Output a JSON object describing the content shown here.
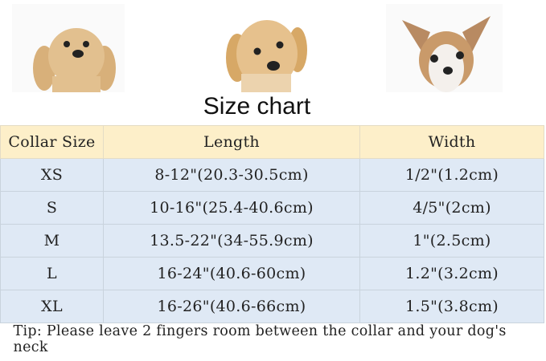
{
  "dogs": [
    {
      "icon": "cocker-spaniel-puppy-photo"
    },
    {
      "icon": "golden-retriever-puppy-photo"
    },
    {
      "icon": "chihuahua-photo"
    }
  ],
  "title": "Size chart",
  "headers": [
    "Collar Size",
    "Length",
    "Width"
  ],
  "rows": [
    [
      "XS",
      "8-12\"(20.3-30.5cm)",
      "1/2\"(1.2cm)"
    ],
    [
      "S",
      "10-16\"(25.4-40.6cm)",
      "4/5\"(2cm)"
    ],
    [
      "M",
      "13.5-22\"(34-55.9cm)",
      "1\"(2.5cm)"
    ],
    [
      "L",
      "16-24\"(40.6-60cm)",
      "1.2\"(3.2cm)"
    ],
    [
      "XL",
      "16-26\"(40.6-66cm)",
      "1.5\"(3.8cm)"
    ]
  ],
  "tip": "Tip: Please leave 2 fingers room between the collar and your dog's neck",
  "colors": {
    "header_bg": "#fdefc9",
    "row_bg": "#dfe9f5"
  }
}
